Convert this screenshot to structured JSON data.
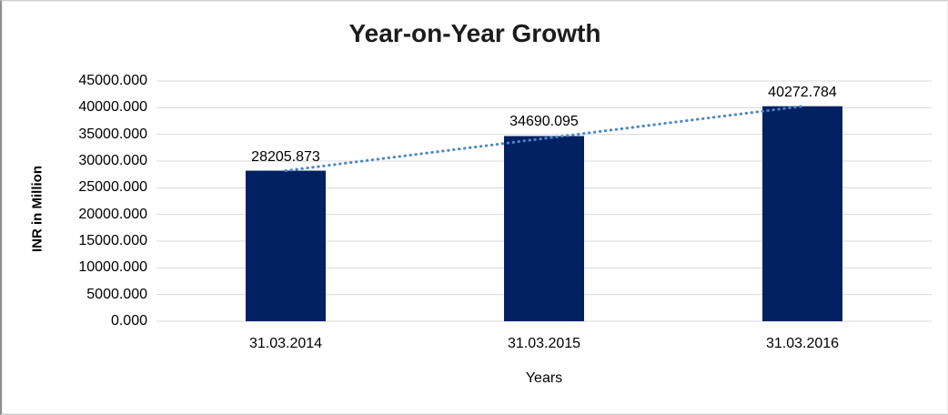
{
  "chart_data": {
    "type": "bar",
    "title": "Year-on-Year Growth",
    "xlabel": "Years",
    "ylabel": "INR in Million",
    "categories": [
      "31.03.2014",
      "31.03.2015",
      "31.03.2016"
    ],
    "values": [
      28205.873,
      34690.095,
      40272.784
    ],
    "value_labels": [
      "28205.873",
      "34690.095",
      "40272.784"
    ],
    "ylim": [
      0,
      45000
    ],
    "ytick_step": 5000,
    "ytick_labels": [
      "0.000",
      "5000.000",
      "10000.000",
      "15000.000",
      "20000.000",
      "25000.000",
      "30000.000",
      "35000.000",
      "40000.000",
      "45000.000"
    ],
    "grid": true,
    "legend": "none",
    "trendline": {
      "style": "dotted",
      "from_index": 0,
      "to_index": 2
    },
    "colors": {
      "bar": "#022163",
      "gridline": "#d9d9d9",
      "trendline": "#4e87c7",
      "title": "#1c1c1c",
      "text": "#000000"
    }
  }
}
